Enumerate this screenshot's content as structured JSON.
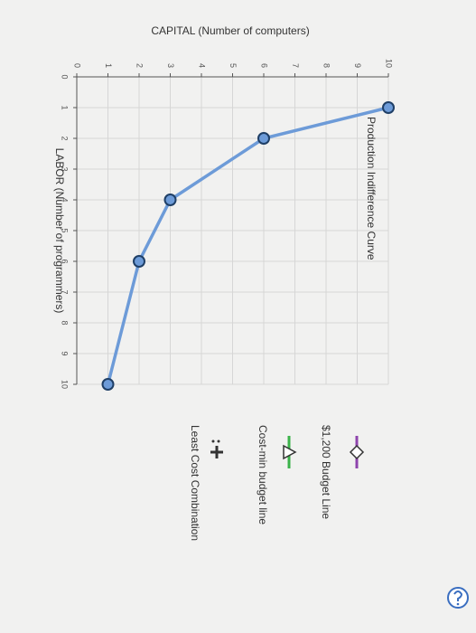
{
  "chart_data": {
    "type": "line",
    "x_label": "LABOR (Number of programmers)",
    "y_label": "CAPITAL (Number of computers)",
    "xlim": [
      0,
      10
    ],
    "ylim": [
      0,
      10
    ],
    "xticks": [
      0,
      1,
      2,
      3,
      4,
      5,
      6,
      7,
      8,
      9,
      10
    ],
    "yticks": [
      0,
      1,
      2,
      3,
      4,
      5,
      6,
      7,
      8,
      9,
      10
    ],
    "grid": true,
    "series": [
      {
        "name": "Production Indifference Curve",
        "color": "#6d9bd8",
        "x": [
          1,
          2,
          4,
          6,
          10
        ],
        "values": [
          10,
          6,
          3,
          2,
          1
        ]
      }
    ],
    "tools": [
      "$1,200 Budget Line",
      "Cost-min budget line",
      "Least Cost Combination"
    ]
  }
}
